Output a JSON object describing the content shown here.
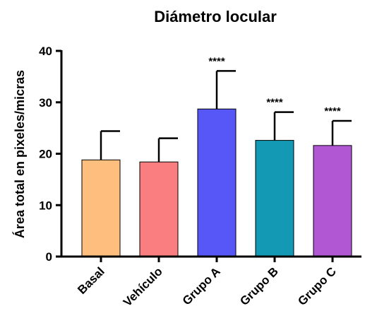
{
  "chart_data": {
    "type": "bar",
    "title": "Diámetro locular",
    "xlabel": "",
    "ylabel": "Área total en pixeles/micras",
    "ylim": [
      0,
      40
    ],
    "yticks": [
      "0",
      "10",
      "20",
      "30",
      "40"
    ],
    "categories": [
      "Basal",
      "Vehículo",
      "Grupo A",
      "Grupo B",
      "Grupo C"
    ],
    "values": [
      18.8,
      18.4,
      28.7,
      22.6,
      21.6
    ],
    "error_upper": [
      24.4,
      23.0,
      36.1,
      28.1,
      26.4
    ],
    "significance": [
      "",
      "",
      "****",
      "****",
      "****"
    ],
    "colors": [
      "#FDBE7E",
      "#FA7E80",
      "#5757F8",
      "#1399B4",
      "#B257D4"
    ],
    "grid": false,
    "legend": "none"
  }
}
